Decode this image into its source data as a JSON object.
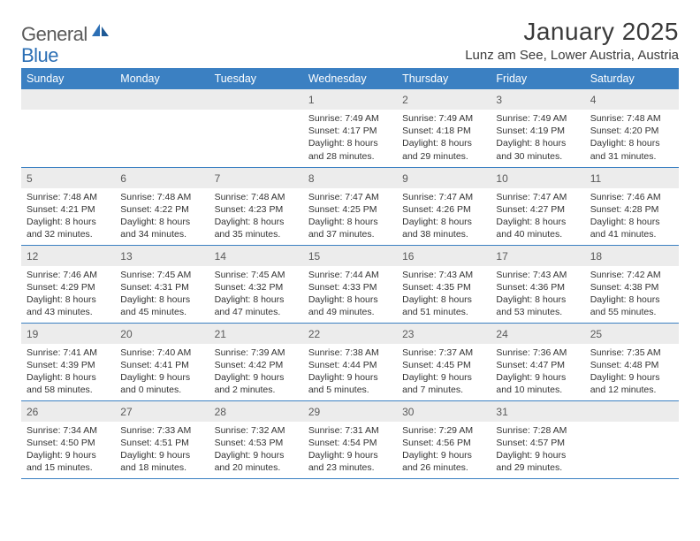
{
  "logo": {
    "text_gray": "General",
    "text_blue": "Blue",
    "icon_color": "#2c6fb5"
  },
  "title": "January 2025",
  "location": "Lunz am See, Lower Austria, Austria",
  "day_headers": [
    "Sunday",
    "Monday",
    "Tuesday",
    "Wednesday",
    "Thursday",
    "Friday",
    "Saturday"
  ],
  "colors": {
    "header_bg": "#3b80c2",
    "header_text": "#ffffff",
    "daynum_bg": "#ececec",
    "daynum_text": "#5a5a5a",
    "body_text": "#333333",
    "rule": "#3b80c2",
    "page_bg": "#ffffff"
  },
  "typography": {
    "title_fontsize": 28,
    "location_fontsize": 15,
    "header_fontsize": 12.5,
    "daynum_fontsize": 12,
    "data_fontsize": 10.5
  },
  "leading_blanks": 3,
  "days": [
    {
      "n": "1",
      "sunrise": "7:49 AM",
      "sunset": "4:17 PM",
      "dl_h": "8",
      "dl_m": "28"
    },
    {
      "n": "2",
      "sunrise": "7:49 AM",
      "sunset": "4:18 PM",
      "dl_h": "8",
      "dl_m": "29"
    },
    {
      "n": "3",
      "sunrise": "7:49 AM",
      "sunset": "4:19 PM",
      "dl_h": "8",
      "dl_m": "30"
    },
    {
      "n": "4",
      "sunrise": "7:48 AM",
      "sunset": "4:20 PM",
      "dl_h": "8",
      "dl_m": "31"
    },
    {
      "n": "5",
      "sunrise": "7:48 AM",
      "sunset": "4:21 PM",
      "dl_h": "8",
      "dl_m": "32"
    },
    {
      "n": "6",
      "sunrise": "7:48 AM",
      "sunset": "4:22 PM",
      "dl_h": "8",
      "dl_m": "34"
    },
    {
      "n": "7",
      "sunrise": "7:48 AM",
      "sunset": "4:23 PM",
      "dl_h": "8",
      "dl_m": "35"
    },
    {
      "n": "8",
      "sunrise": "7:47 AM",
      "sunset": "4:25 PM",
      "dl_h": "8",
      "dl_m": "37"
    },
    {
      "n": "9",
      "sunrise": "7:47 AM",
      "sunset": "4:26 PM",
      "dl_h": "8",
      "dl_m": "38"
    },
    {
      "n": "10",
      "sunrise": "7:47 AM",
      "sunset": "4:27 PM",
      "dl_h": "8",
      "dl_m": "40"
    },
    {
      "n": "11",
      "sunrise": "7:46 AM",
      "sunset": "4:28 PM",
      "dl_h": "8",
      "dl_m": "41"
    },
    {
      "n": "12",
      "sunrise": "7:46 AM",
      "sunset": "4:29 PM",
      "dl_h": "8",
      "dl_m": "43"
    },
    {
      "n": "13",
      "sunrise": "7:45 AM",
      "sunset": "4:31 PM",
      "dl_h": "8",
      "dl_m": "45"
    },
    {
      "n": "14",
      "sunrise": "7:45 AM",
      "sunset": "4:32 PM",
      "dl_h": "8",
      "dl_m": "47"
    },
    {
      "n": "15",
      "sunrise": "7:44 AM",
      "sunset": "4:33 PM",
      "dl_h": "8",
      "dl_m": "49"
    },
    {
      "n": "16",
      "sunrise": "7:43 AM",
      "sunset": "4:35 PM",
      "dl_h": "8",
      "dl_m": "51"
    },
    {
      "n": "17",
      "sunrise": "7:43 AM",
      "sunset": "4:36 PM",
      "dl_h": "8",
      "dl_m": "53"
    },
    {
      "n": "18",
      "sunrise": "7:42 AM",
      "sunset": "4:38 PM",
      "dl_h": "8",
      "dl_m": "55"
    },
    {
      "n": "19",
      "sunrise": "7:41 AM",
      "sunset": "4:39 PM",
      "dl_h": "8",
      "dl_m": "58"
    },
    {
      "n": "20",
      "sunrise": "7:40 AM",
      "sunset": "4:41 PM",
      "dl_h": "9",
      "dl_m": "0"
    },
    {
      "n": "21",
      "sunrise": "7:39 AM",
      "sunset": "4:42 PM",
      "dl_h": "9",
      "dl_m": "2"
    },
    {
      "n": "22",
      "sunrise": "7:38 AM",
      "sunset": "4:44 PM",
      "dl_h": "9",
      "dl_m": "5"
    },
    {
      "n": "23",
      "sunrise": "7:37 AM",
      "sunset": "4:45 PM",
      "dl_h": "9",
      "dl_m": "7"
    },
    {
      "n": "24",
      "sunrise": "7:36 AM",
      "sunset": "4:47 PM",
      "dl_h": "9",
      "dl_m": "10"
    },
    {
      "n": "25",
      "sunrise": "7:35 AM",
      "sunset": "4:48 PM",
      "dl_h": "9",
      "dl_m": "12"
    },
    {
      "n": "26",
      "sunrise": "7:34 AM",
      "sunset": "4:50 PM",
      "dl_h": "9",
      "dl_m": "15"
    },
    {
      "n": "27",
      "sunrise": "7:33 AM",
      "sunset": "4:51 PM",
      "dl_h": "9",
      "dl_m": "18"
    },
    {
      "n": "28",
      "sunrise": "7:32 AM",
      "sunset": "4:53 PM",
      "dl_h": "9",
      "dl_m": "20"
    },
    {
      "n": "29",
      "sunrise": "7:31 AM",
      "sunset": "4:54 PM",
      "dl_h": "9",
      "dl_m": "23"
    },
    {
      "n": "30",
      "sunrise": "7:29 AM",
      "sunset": "4:56 PM",
      "dl_h": "9",
      "dl_m": "26"
    },
    {
      "n": "31",
      "sunrise": "7:28 AM",
      "sunset": "4:57 PM",
      "dl_h": "9",
      "dl_m": "29"
    }
  ],
  "labels": {
    "sunrise_prefix": "Sunrise: ",
    "sunset_prefix": "Sunset: ",
    "daylight_prefix": "Daylight: ",
    "hours_word": " hours",
    "and_word": "and ",
    "minutes_word": " minutes."
  }
}
